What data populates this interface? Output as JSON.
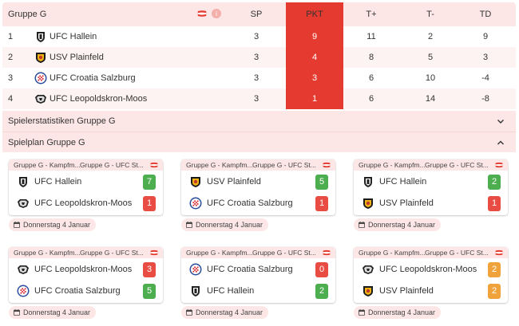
{
  "standings": {
    "group_title": "Gruppe G",
    "columns": {
      "sp": "SP",
      "pkt": "PKT",
      "tplus": "T+",
      "tminus": "T-",
      "td": "TD"
    },
    "rows": [
      {
        "pos": "1",
        "team": "UFC Hallein",
        "logo": "hallein-logo",
        "sp": "3",
        "pkt": "9",
        "tplus": "11",
        "tminus": "2",
        "td": "9"
      },
      {
        "pos": "2",
        "team": "USV Plainfeld",
        "logo": "plainfeld-logo",
        "sp": "3",
        "pkt": "4",
        "tplus": "8",
        "tminus": "5",
        "td": "3"
      },
      {
        "pos": "3",
        "team": "UFC Croatia Salzburg",
        "logo": "croatia-logo",
        "sp": "3",
        "pkt": "3",
        "tplus": "6",
        "tminus": "10",
        "td": "-4"
      },
      {
        "pos": "4",
        "team": "UFC Leopoldskron-Moos",
        "logo": "leopoldskron-logo",
        "sp": "3",
        "pkt": "1",
        "tplus": "6",
        "tminus": "14",
        "td": "-8"
      }
    ]
  },
  "sections": {
    "player_stats": "Spielerstatistiken Gruppe G",
    "schedule": "Spielplan Gruppe G"
  },
  "matches": [
    {
      "meta_left": "Gruppe G - Kampfm...",
      "meta_right": "Gruppe G - UFC St...",
      "home": "UFC Hallein",
      "home_logo": "hallein-logo",
      "home_score": "7",
      "home_result": "win",
      "away": "UFC Leopoldskron-Moos",
      "away_logo": "leopoldskron-logo",
      "away_score": "1",
      "away_result": "loss",
      "date": "Donnerstag 4 Januar"
    },
    {
      "meta_left": "Gruppe G - Kampfm...",
      "meta_right": "Gruppe G - UFC St...",
      "home": "USV Plainfeld",
      "home_logo": "plainfeld-logo",
      "home_score": "5",
      "home_result": "win",
      "away": "UFC Croatia Salzburg",
      "away_logo": "croatia-logo",
      "away_score": "1",
      "away_result": "loss",
      "date": "Donnerstag 4 Januar"
    },
    {
      "meta_left": "Gruppe G - Kampfm...",
      "meta_right": "Gruppe G - UFC St...",
      "home": "UFC Hallein",
      "home_logo": "hallein-logo",
      "home_score": "2",
      "home_result": "win",
      "away": "USV Plainfeld",
      "away_logo": "plainfeld-logo",
      "away_score": "1",
      "away_result": "loss",
      "date": "Donnerstag 4 Januar"
    },
    {
      "meta_left": "Gruppe G - Kampfm...",
      "meta_right": "Gruppe G - UFC St...",
      "home": "UFC Leopoldskron-Moos",
      "home_logo": "leopoldskron-logo",
      "home_score": "3",
      "home_result": "loss",
      "away": "UFC Croatia Salzburg",
      "away_logo": "croatia-logo",
      "away_score": "5",
      "away_result": "win",
      "date": "Donnerstag 4 Januar"
    },
    {
      "meta_left": "Gruppe G - Kampfm...",
      "meta_right": "Gruppe G - UFC St...",
      "home": "UFC Croatia Salzburg",
      "home_logo": "croatia-logo",
      "home_score": "0",
      "home_result": "loss",
      "away": "UFC Hallein",
      "away_logo": "hallein-logo",
      "away_score": "2",
      "away_result": "win",
      "date": "Donnerstag 4 Januar"
    },
    {
      "meta_left": "Gruppe G - Kampfm...",
      "meta_right": "Gruppe G - UFC St...",
      "home": "UFC Leopoldskron-Moos",
      "home_logo": "leopoldskron-logo",
      "home_score": "2",
      "home_result": "draw",
      "away": "USV Plainfeld",
      "away_logo": "plainfeld-logo",
      "away_score": "2",
      "away_result": "draw",
      "date": "Donnerstag 4 Januar"
    }
  ],
  "colors": {
    "accent": "#e53a2f",
    "header_bg": "#fde7e6",
    "win": "#4cae4f",
    "loss": "#e84c43",
    "draw": "#f0a33a"
  },
  "icons": {
    "header_flag": "austria-flag-icon",
    "info": "info-icon",
    "chevron_collapsed": "chevron-down-icon",
    "chevron_expanded": "chevron-up-icon",
    "calendar": "calendar-icon"
  }
}
